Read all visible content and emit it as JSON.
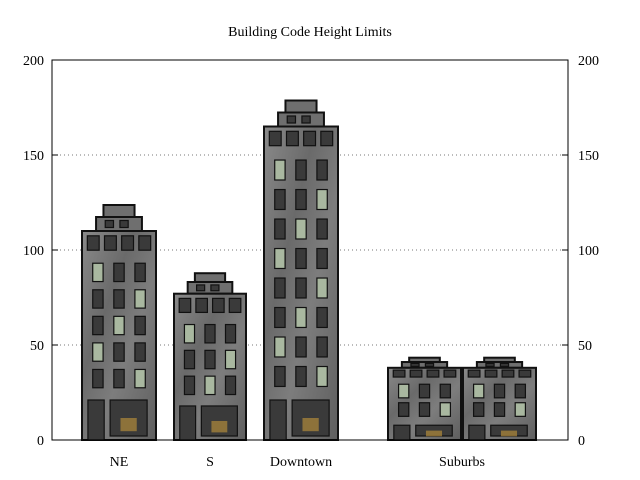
{
  "chart_data": {
    "type": "bar",
    "title": "Building Code Height Limits",
    "categories": [
      "NE",
      "S",
      "Downtown",
      "Suburbs"
    ],
    "values": [
      110,
      77,
      165,
      38
    ],
    "ylim": [
      0,
      200
    ],
    "yticks": [
      0,
      50,
      100,
      150,
      200
    ],
    "y2ticks": [
      0,
      50,
      100,
      150,
      200
    ],
    "grid": "horizontal dotted",
    "xlabel": "",
    "ylabel": "",
    "bar_style": "building pictograms",
    "colors": {
      "building": "#6f6f6f",
      "building_light": "#9a9a9a",
      "window": "#3a3a3a",
      "window_lit": "#a9b8a0",
      "door_glow": "#b08a3a"
    }
  }
}
